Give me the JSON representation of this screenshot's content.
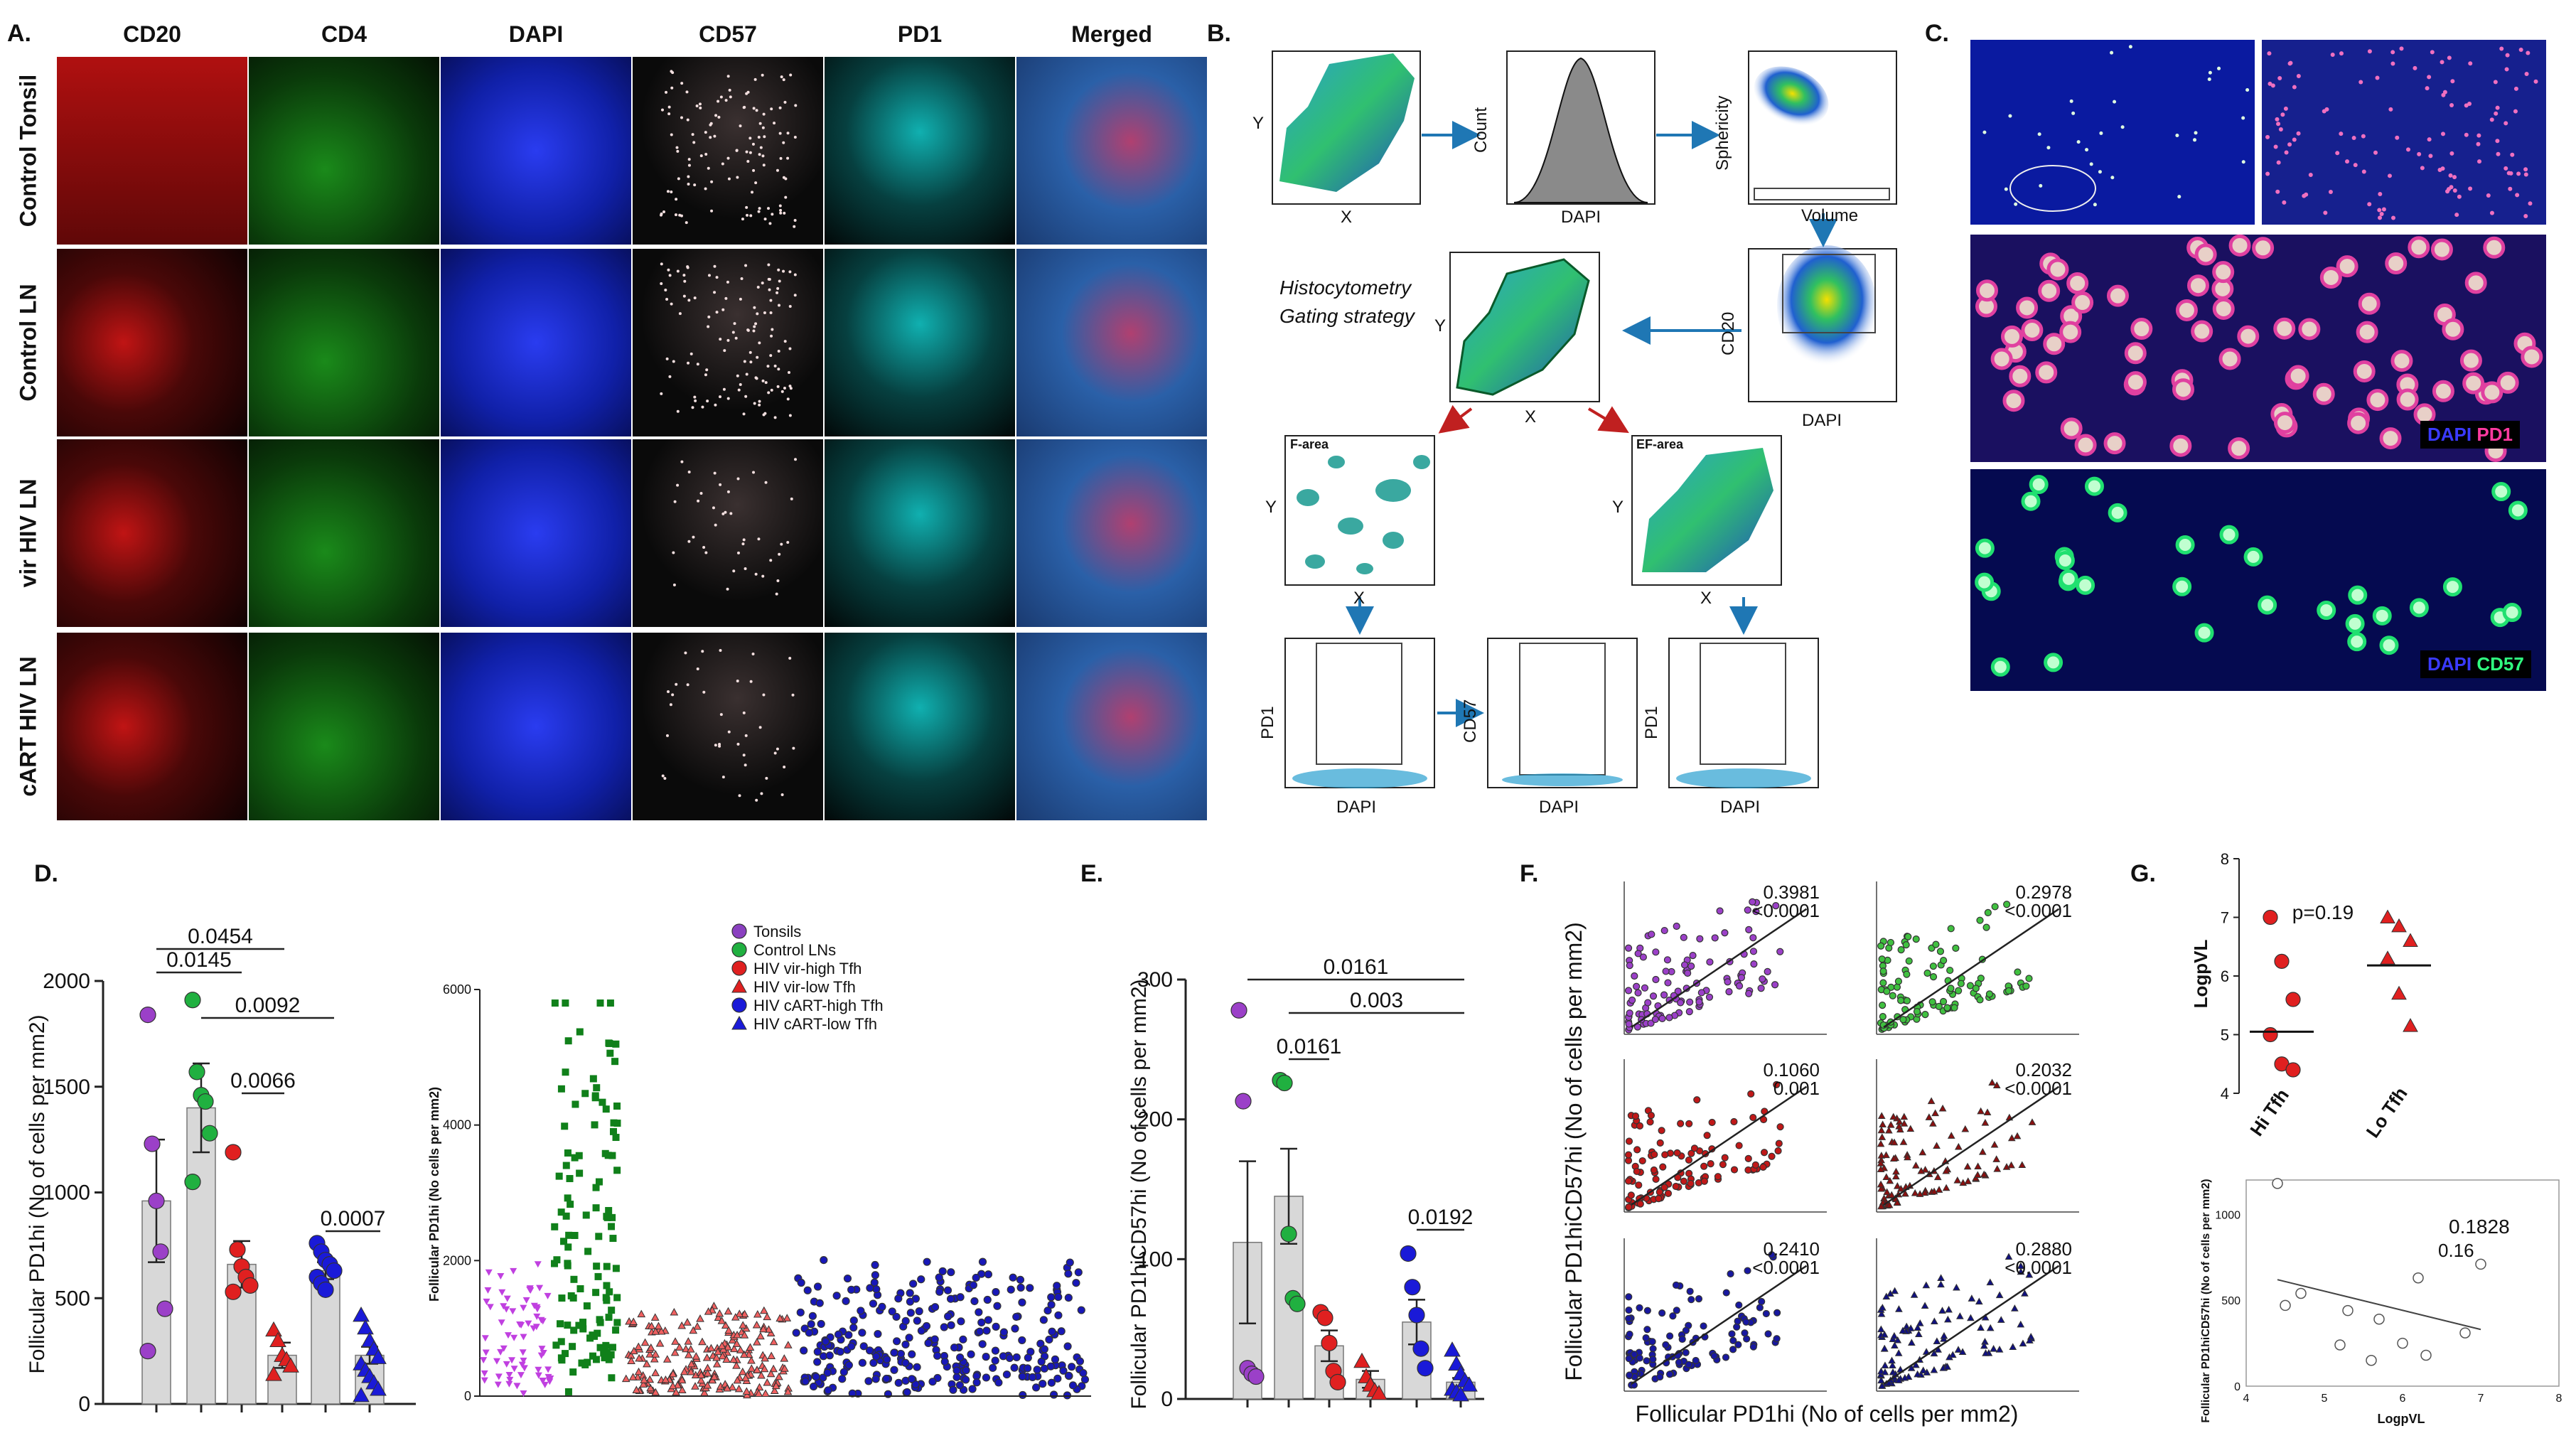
{
  "figure": {
    "panel_labels": {
      "a": "A.",
      "b": "B.",
      "c": "C.",
      "d": "D.",
      "e": "E.",
      "f": "F.",
      "g": "G."
    }
  },
  "panel_a": {
    "channels": [
      "CD20",
      "CD4",
      "DAPI",
      "CD57",
      "PD1",
      "Merged"
    ],
    "rows": [
      "Control Tonsil",
      "Control LN",
      "vir HIV LN",
      "cART HIV LN"
    ],
    "colors": {
      "CD20": "#d01818",
      "CD4": "#18b018",
      "DAPI": "#1830e0",
      "CD57": "#f2d6d6",
      "PD1": "#20e0e0"
    }
  },
  "panel_b": {
    "title": "Histocytometry Gating strategy",
    "labels": {
      "x": "X",
      "y": "Y",
      "count": "Count",
      "dapi": "DAPI",
      "sphericity": "Sphericity",
      "volume": "Volume",
      "cd20": "CD20",
      "pd1": "PD1",
      "cd57": "CD57",
      "f_area": "F-area",
      "ef_area": "EF-area"
    }
  },
  "panel_c": {
    "legend1": "DAPI",
    "legend1b": "PD1",
    "legend2": "DAPI",
    "legend2b": "CD57"
  },
  "chart_data": [
    {
      "panel": "D (left)",
      "type": "bar",
      "ylabel": "Follicular PD1hi (No of cells per mm2)",
      "ylim": [
        0,
        2000
      ],
      "yticks": [
        0,
        500,
        1000,
        1500,
        2000
      ],
      "series": [
        {
          "name": "Tonsils",
          "mean": 960,
          "sem": 290,
          "points": [
            1840,
            1230,
            960,
            720,
            450,
            250
          ]
        },
        {
          "name": "Control LNs",
          "mean": 1400,
          "sem": 210,
          "points": [
            1910,
            1570,
            1460,
            1430,
            1280,
            1050
          ]
        },
        {
          "name": "HIV vir-high Tfh",
          "mean": 660,
          "sem": 110,
          "points": [
            1190,
            730,
            650,
            600,
            560,
            530
          ]
        },
        {
          "name": "HIV vir-low Tfh",
          "mean": 230,
          "sem": 60,
          "points": [
            350,
            300,
            230,
            210,
            180,
            140
          ]
        },
        {
          "name": "HIV cART-high Tfh",
          "mean": 630,
          "sem": 40,
          "points": [
            760,
            720,
            680,
            660,
            630,
            600,
            570,
            540
          ]
        },
        {
          "name": "HIV cART-low Tfh",
          "mean": 230,
          "sem": 40,
          "points": [
            420,
            360,
            300,
            260,
            220,
            190,
            160,
            130,
            100,
            70,
            40
          ]
        }
      ],
      "pvalues": [
        "0.0454",
        "0.0145",
        "0.0092",
        "0.0066",
        "0.0007"
      ]
    },
    {
      "panel": "D (right)",
      "type": "scatter",
      "ylabel": "Follicular PD1hi (No cells per mm2)",
      "ylim": [
        0,
        6000
      ],
      "yticks": [
        0,
        2000,
        4000,
        6000
      ],
      "legend": [
        "Tonsils",
        "Control LNs",
        "HIV vir-high Tfh",
        "HIV vir-low Tfh",
        "HIV cART-high Tfh",
        "HIV cART-low Tfh"
      ]
    },
    {
      "panel": "E",
      "type": "bar",
      "ylabel": "Follicular PD1hiCD57hi (No of cells per mm2)",
      "ylim": [
        0,
        300
      ],
      "yticks": [
        0,
        100,
        200,
        300
      ],
      "series": [
        {
          "name": "Tonsils",
          "mean": 112,
          "sem": 58,
          "points": [
            278,
            213,
            22,
            18,
            16
          ]
        },
        {
          "name": "Control LNs",
          "mean": 145,
          "sem": 34,
          "points": [
            228,
            226,
            118,
            72,
            68
          ]
        },
        {
          "name": "HIV vir-high Tfh",
          "mean": 38,
          "sem": 11,
          "points": [
            62,
            58,
            40,
            20,
            12
          ]
        },
        {
          "name": "HIV vir-low Tfh",
          "mean": 14,
          "sem": 6,
          "points": [
            27,
            16,
            10,
            6,
            4
          ]
        },
        {
          "name": "HIV cART-high Tfh",
          "mean": 55,
          "sem": 16,
          "points": [
            104,
            80,
            60,
            36,
            22
          ]
        },
        {
          "name": "HIV cART-low Tfh",
          "mean": 12,
          "sem": 3,
          "points": [
            35,
            25,
            18,
            13,
            10,
            7,
            5,
            3
          ]
        }
      ],
      "pvalues": [
        "0.0161",
        "0.003",
        "0.0161",
        "0.0192"
      ]
    },
    {
      "panel": "F",
      "type": "scatter",
      "xlabel": "Follicular PD1hi (No of cells per mm2)",
      "ylabel": "Follicular PD1hiCD57hi (No of cells per mm2)",
      "stats": [
        {
          "r": "0.3981",
          "p": "<0.0001"
        },
        {
          "r": "0.2978",
          "p": "<0.0001"
        },
        {
          "r": "0.1060",
          "p": "0.001"
        },
        {
          "r": "0.2032",
          "p": "<0.0001"
        },
        {
          "r": "0.2410",
          "p": "<0.0001"
        },
        {
          "r": "0.2880",
          "p": "<0.0001"
        }
      ]
    },
    {
      "panel": "G (top)",
      "type": "scatter",
      "ylabel": "LogpVL",
      "ylim": [
        4,
        8
      ],
      "yticks": [
        4,
        5,
        6,
        7,
        8
      ],
      "categories": [
        "Hi Tfh",
        "Lo Tfh"
      ],
      "pvalue": "p=0.19",
      "series": [
        {
          "name": "Hi Tfh",
          "median": 5.05,
          "points": [
            7.0,
            6.25,
            5.6,
            5.0,
            4.5,
            4.4
          ]
        },
        {
          "name": "Lo Tfh",
          "median": 6.18,
          "points": [
            7.0,
            6.85,
            6.6,
            6.3,
            5.7,
            5.15
          ]
        }
      ]
    },
    {
      "panel": "G (bottom)",
      "type": "scatter",
      "xlabel": "LogpVL",
      "ylabel": "Follicular PD1hiCD57hi (No of cells per mm2)",
      "xlim": [
        4,
        8
      ],
      "ylim": [
        0,
        1200
      ],
      "xticks": [
        4,
        5,
        6,
        7,
        8
      ],
      "yticks": [
        0,
        500,
        1000
      ],
      "x": [
        4.4,
        4.5,
        4.7,
        5.2,
        5.3,
        5.6,
        5.7,
        6.0,
        6.2,
        6.3,
        6.8,
        7.0
      ],
      "y": [
        1180,
        470,
        540,
        240,
        440,
        150,
        390,
        250,
        630,
        180,
        310,
        710
      ],
      "stats": {
        "r": "0.1828",
        "p": "0.16"
      }
    }
  ]
}
